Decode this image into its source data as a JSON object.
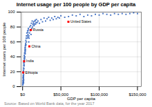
{
  "chart_data": {
    "type": "scatter",
    "title": "Internet usage per 100 people by GDP per capita",
    "xlabel": "GDP per capita",
    "ylabel": "Internet users per 100 people",
    "source": "Source: Based on World Bank data, for the year 2017",
    "color": "#4472C4",
    "marker": "square",
    "grid": true,
    "xlim": [
      -2000,
      155000
    ],
    "ylim": [
      0,
      100
    ],
    "xticks": [
      {
        "value": 0,
        "label": "$0"
      },
      {
        "value": 50000,
        "label": "$50,000"
      },
      {
        "value": 100000,
        "label": "$100,000"
      },
      {
        "value": 150000,
        "label": "$150,000"
      }
    ],
    "yticks": [
      0,
      20,
      40,
      60,
      80,
      100
    ],
    "x": [
      200,
      300,
      400,
      500,
      600,
      700,
      800,
      900,
      1000,
      1100,
      1200,
      1300,
      1400,
      1500,
      1600,
      1700,
      1800,
      1900,
      2000,
      2200,
      2400,
      2600,
      2800,
      3000,
      3200,
      3400,
      3600,
      3800,
      4000,
      4200,
      4400,
      4600,
      4800,
      5000,
      5500,
      6000,
      6500,
      7000,
      7500,
      8000,
      8500,
      9000,
      9500,
      10000,
      10500,
      11000,
      11500,
      12000,
      12500,
      13000,
      14000,
      15000,
      16000,
      17000,
      18000,
      19000,
      20000,
      22000,
      24000,
      26000,
      28000,
      30000,
      32000,
      34000,
      36000,
      38000,
      40000,
      42000,
      44000,
      46000,
      48000,
      50000,
      55000,
      60000,
      65000,
      70000,
      75000,
      80000,
      85000,
      90000,
      95000,
      100000,
      105000,
      110000,
      115000,
      120000,
      125000,
      130000,
      135000,
      140000,
      145000,
      150000,
      1050,
      1150,
      1250,
      1350,
      1450,
      550,
      650,
      750,
      850,
      950,
      2100,
      2300,
      2500,
      2700,
      2900,
      3100,
      3300,
      3500,
      3700,
      3900,
      6200,
      6800,
      7200,
      7800,
      8200,
      13500,
      14500,
      15500,
      16500,
      17500
    ],
    "values": [
      2,
      5,
      3,
      8,
      12,
      6,
      15,
      10,
      18,
      22,
      14,
      25,
      20,
      28,
      32,
      24,
      30,
      35,
      38,
      42,
      36,
      45,
      40,
      48,
      52,
      44,
      55,
      50,
      58,
      62,
      56,
      65,
      60,
      68,
      72,
      65,
      75,
      70,
      78,
      60,
      65,
      72,
      80,
      75,
      82,
      70,
      85,
      78,
      88,
      80,
      85,
      82,
      88,
      84,
      90,
      86,
      88,
      85,
      90,
      87,
      92,
      88,
      91,
      93,
      89,
      92,
      90,
      94,
      91,
      93,
      92,
      95,
      93,
      94,
      96,
      95,
      97,
      94,
      96,
      95,
      97,
      96,
      98,
      97,
      96,
      98,
      97,
      98,
      97,
      98,
      99,
      98,
      7,
      12,
      5,
      16,
      9,
      4,
      8,
      13,
      6,
      11,
      28,
      33,
      40,
      38,
      45,
      50,
      46,
      53,
      48,
      56,
      68,
      73,
      66,
      76,
      68,
      83,
      87,
      84,
      89,
      86
    ],
    "annotations": [
      {
        "text": "United States",
        "x": 59800,
        "y": 87,
        "color": "#FF0000"
      },
      {
        "text": "Russia",
        "x": 10700,
        "y": 76,
        "color": "#FF0000"
      },
      {
        "text": "China",
        "x": 8800,
        "y": 54,
        "color": "#FF0000"
      },
      {
        "text": "India",
        "x": 1940,
        "y": 34,
        "color": "#FF0000"
      },
      {
        "text": "Ethiopia",
        "x": 770,
        "y": 19,
        "color": "#FF0000"
      }
    ]
  }
}
